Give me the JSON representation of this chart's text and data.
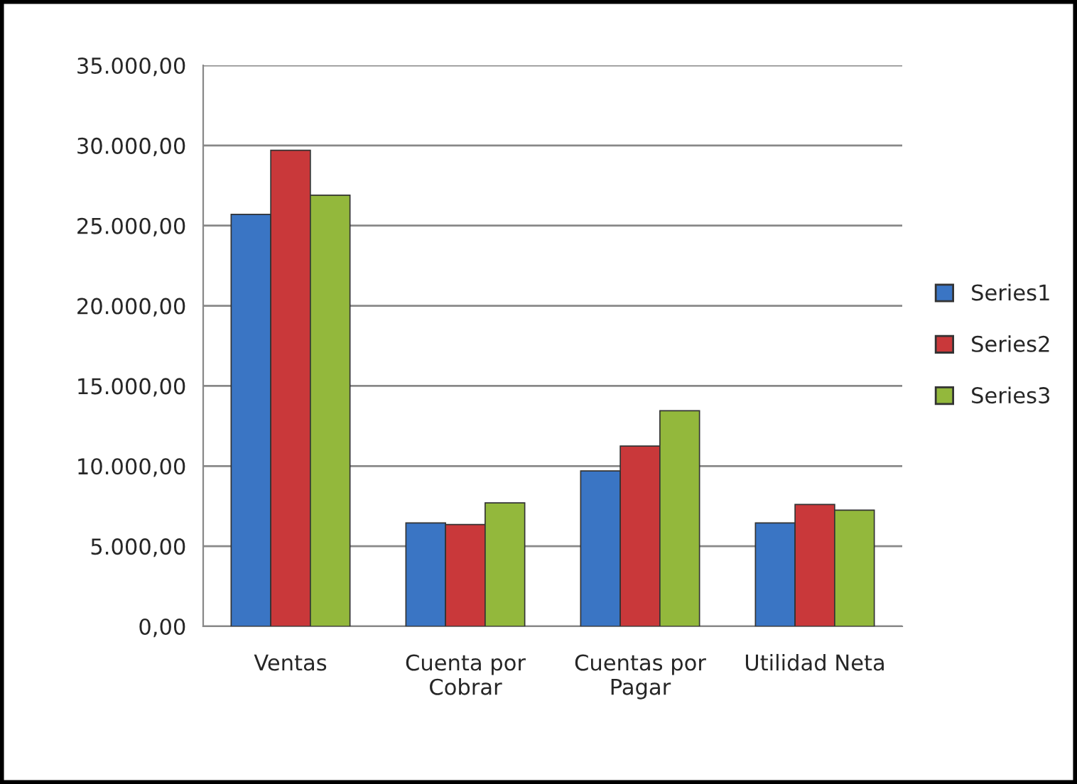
{
  "chart_data": {
    "type": "bar",
    "categories": [
      "Ventas",
      "Cuenta por\nCobrar",
      "Cuentas por\nPagar",
      "Utilidad Neta"
    ],
    "series": [
      {
        "name": "Series1",
        "color": "#3a75c4",
        "values": [
          25700,
          6450,
          9700,
          6450
        ]
      },
      {
        "name": "Series2",
        "color": "#c9383a",
        "values": [
          29700,
          6350,
          11250,
          7600
        ]
      },
      {
        "name": "Series3",
        "color": "#93b83c",
        "values": [
          26900,
          7700,
          13450,
          7250
        ]
      }
    ],
    "ylim": [
      0,
      35000
    ],
    "yticks": [
      {
        "value": 0,
        "label": "0,00"
      },
      {
        "value": 5000,
        "label": "5.000,00"
      },
      {
        "value": 10000,
        "label": "10.000,00"
      },
      {
        "value": 15000,
        "label": "15.000,00"
      },
      {
        "value": 20000,
        "label": "20.000,00"
      },
      {
        "value": 25000,
        "label": "25.000,00"
      },
      {
        "value": 30000,
        "label": "30.000,00"
      },
      {
        "value": 35000,
        "label": "35.000,00"
      }
    ],
    "grid": "y",
    "legend": "right"
  }
}
